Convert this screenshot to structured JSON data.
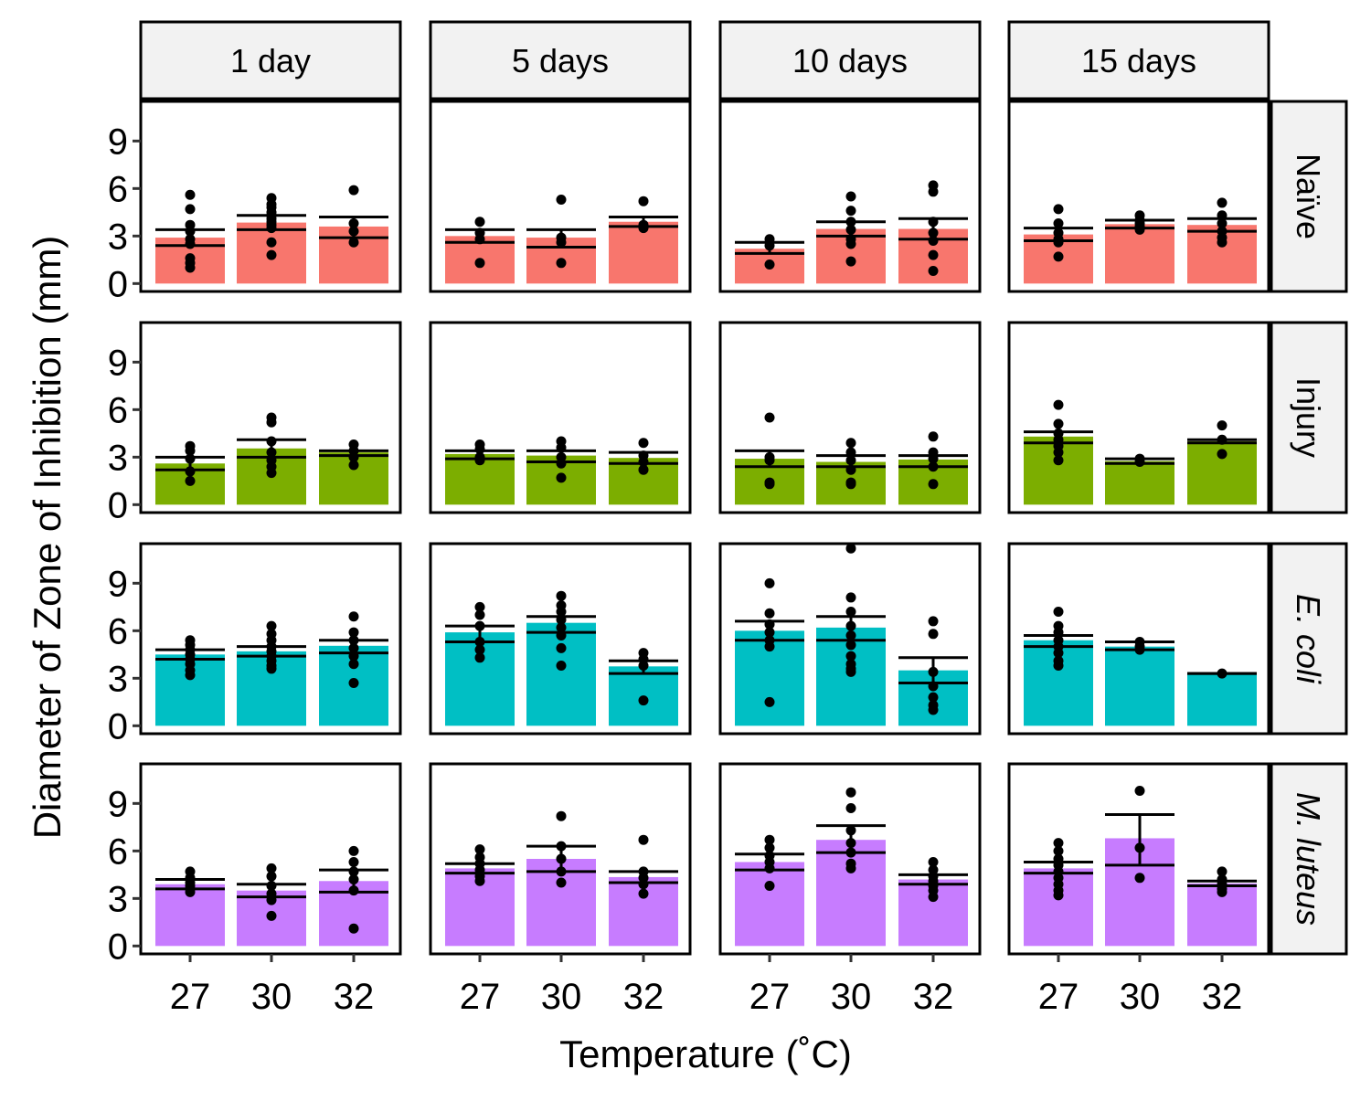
{
  "chart_data": {
    "type": "bar",
    "xlabel": "Temperature (˚C)",
    "ylabel": "Diameter of Zone of Inhibition (mm)",
    "columns": [
      "1 day",
      "5 days",
      "10 days",
      "15 days"
    ],
    "rows": [
      {
        "label": "Naïve",
        "italic": false,
        "color": "#F8766D"
      },
      {
        "label": "Injury",
        "italic": false,
        "color": "#7CAE00"
      },
      {
        "label": "E. coli",
        "italic": true,
        "color": "#00BFC4"
      },
      {
        "label": "M. luteus",
        "italic": true,
        "color": "#C77CFF"
      }
    ],
    "categories": [
      "27",
      "30",
      "32"
    ],
    "y_ticks": [
      "0",
      "3",
      "6",
      "9"
    ],
    "ylim": [
      -0.5,
      11.5
    ],
    "grid": false,
    "legend": "none",
    "point_color": "#000000",
    "panels": [
      [
        [
          {
            "mean": 2.9,
            "lo": 2.4,
            "hi": 3.4,
            "points": [
              5.6,
              4.7,
              3.7,
              3.3,
              2.8,
              2.5,
              1.6,
              1.3,
              1.0
            ]
          },
          {
            "mean": 3.85,
            "lo": 3.4,
            "hi": 4.3,
            "points": [
              5.4,
              5.0,
              4.8,
              4.5,
              4.3,
              4.1,
              3.9,
              3.7,
              3.5,
              2.6,
              1.8
            ]
          },
          {
            "mean": 3.6,
            "lo": 2.9,
            "hi": 4.2,
            "points": [
              5.9,
              3.8,
              3.3,
              2.6
            ]
          }
        ],
        [
          {
            "mean": 3.0,
            "lo": 2.6,
            "hi": 3.4,
            "points": [
              3.9,
              3.2,
              2.8,
              1.3
            ]
          },
          {
            "mean": 2.9,
            "lo": 2.3,
            "hi": 3.4,
            "points": [
              5.3,
              2.9,
              2.6,
              1.3
            ]
          },
          {
            "mean": 3.9,
            "lo": 3.6,
            "hi": 4.2,
            "points": [
              5.2,
              3.7,
              3.5
            ]
          }
        ],
        [
          {
            "mean": 2.2,
            "lo": 1.9,
            "hi": 2.6,
            "points": [
              2.8,
              2.4,
              1.2
            ]
          },
          {
            "mean": 3.45,
            "lo": 3.0,
            "hi": 3.9,
            "points": [
              5.5,
              4.6,
              3.9,
              3.4,
              2.8,
              2.5,
              1.4
            ]
          },
          {
            "mean": 3.45,
            "lo": 2.8,
            "hi": 4.1,
            "points": [
              6.2,
              5.8,
              3.9,
              3.2,
              2.7,
              1.8,
              0.8
            ]
          }
        ],
        [
          {
            "mean": 3.1,
            "lo": 2.7,
            "hi": 3.5,
            "points": [
              4.7,
              3.8,
              3.2,
              2.8,
              2.6,
              1.7
            ]
          },
          {
            "mean": 3.75,
            "lo": 3.5,
            "hi": 4.0,
            "points": [
              4.3,
              4.0,
              3.8,
              3.6,
              3.4
            ]
          },
          {
            "mean": 3.7,
            "lo": 3.3,
            "hi": 4.1,
            "points": [
              5.1,
              4.3,
              3.8,
              3.3,
              2.9,
              2.6
            ]
          }
        ]
      ],
      [
        [
          {
            "mean": 2.6,
            "lo": 2.2,
            "hi": 3.0,
            "points": [
              3.7,
              3.4,
              2.9,
              2.1,
              1.5
            ]
          },
          {
            "mean": 3.55,
            "lo": 3.0,
            "hi": 4.1,
            "points": [
              5.5,
              5.2,
              4.0,
              3.3,
              2.8,
              2.4,
              2.0
            ]
          },
          {
            "mean": 3.3,
            "lo": 3.1,
            "hi": 3.4,
            "points": [
              3.8,
              3.4,
              3.0,
              2.5
            ]
          }
        ],
        [
          {
            "mean": 3.2,
            "lo": 2.9,
            "hi": 3.4,
            "points": [
              3.8,
              3.5,
              3.0,
              2.8
            ]
          },
          {
            "mean": 3.1,
            "lo": 2.7,
            "hi": 3.4,
            "points": [
              4.0,
              3.6,
              3.0,
              2.6,
              1.7
            ]
          },
          {
            "mean": 2.95,
            "lo": 2.6,
            "hi": 3.3,
            "points": [
              3.9,
              3.1,
              2.7,
              2.2
            ]
          }
        ],
        [
          {
            "mean": 2.9,
            "lo": 2.4,
            "hi": 3.4,
            "points": [
              5.5,
              3.0,
              2.8,
              1.4,
              1.3
            ]
          },
          {
            "mean": 2.7,
            "lo": 2.4,
            "hi": 3.1,
            "points": [
              3.9,
              3.3,
              2.8,
              2.2,
              1.4,
              1.3
            ]
          },
          {
            "mean": 2.85,
            "lo": 2.4,
            "hi": 3.1,
            "points": [
              4.3,
              3.3,
              2.9,
              2.4,
              1.3
            ]
          }
        ],
        [
          {
            "mean": 4.3,
            "lo": 3.9,
            "hi": 4.6,
            "points": [
              6.3,
              5.1,
              4.5,
              4.1,
              3.7,
              3.3,
              2.8
            ]
          },
          {
            "mean": 2.75,
            "lo": 2.6,
            "hi": 2.9,
            "points": [
              2.9,
              2.7
            ]
          },
          {
            "mean": 4.0,
            "lo": 3.9,
            "hi": 4.1,
            "points": [
              5.0,
              4.1,
              3.2
            ]
          }
        ]
      ],
      [
        [
          {
            "mean": 4.5,
            "lo": 4.2,
            "hi": 4.8,
            "points": [
              5.4,
              5.1,
              4.8,
              4.5,
              4.2,
              3.9,
              3.5,
              3.2
            ]
          },
          {
            "mean": 4.7,
            "lo": 4.4,
            "hi": 5.0,
            "points": [
              6.3,
              5.8,
              5.4,
              5.0,
              4.7,
              4.4,
              4.1,
              3.8,
              3.6
            ]
          },
          {
            "mean": 5.05,
            "lo": 4.6,
            "hi": 5.4,
            "points": [
              6.9,
              5.9,
              5.4,
              4.9,
              4.4,
              3.9,
              2.7
            ]
          }
        ],
        [
          {
            "mean": 5.9,
            "lo": 5.3,
            "hi": 6.3,
            "points": [
              7.5,
              7.0,
              6.3,
              5.3,
              4.8,
              4.3
            ]
          },
          {
            "mean": 6.5,
            "lo": 5.9,
            "hi": 6.9,
            "points": [
              8.2,
              7.6,
              7.2,
              6.7,
              6.2,
              5.7,
              4.9,
              3.8
            ]
          },
          {
            "mean": 3.75,
            "lo": 3.3,
            "hi": 4.1,
            "points": [
              4.6,
              4.2,
              3.8,
              1.6
            ]
          }
        ],
        [
          {
            "mean": 6.0,
            "lo": 5.4,
            "hi": 6.6,
            "points": [
              9.0,
              7.1,
              6.4,
              5.9,
              5.4,
              5.0,
              1.5
            ]
          },
          {
            "mean": 6.2,
            "lo": 5.4,
            "hi": 6.9,
            "points": [
              11.2,
              8.1,
              7.2,
              6.3,
              5.7,
              5.1,
              4.4,
              3.9,
              3.6,
              3.4
            ]
          },
          {
            "mean": 3.5,
            "lo": 2.7,
            "hi": 4.3,
            "points": [
              6.6,
              5.8,
              3.4,
              2.5,
              1.8,
              1.3,
              1.0
            ]
          }
        ],
        [
          {
            "mean": 5.4,
            "lo": 5.0,
            "hi": 5.7,
            "points": [
              7.2,
              6.3,
              5.9,
              5.4,
              5.0,
              4.6,
              4.1,
              3.8
            ]
          },
          {
            "mean": 5.0,
            "lo": 4.8,
            "hi": 5.3,
            "points": [
              5.3,
              5.0,
              4.8
            ]
          },
          {
            "mean": 3.3,
            "lo": 3.3,
            "hi": 3.3,
            "points": [
              3.3
            ]
          }
        ]
      ],
      [
        [
          {
            "mean": 3.9,
            "lo": 3.6,
            "hi": 4.2,
            "points": [
              4.7,
              4.3,
              4.0,
              3.8,
              3.6,
              3.4
            ]
          },
          {
            "mean": 3.5,
            "lo": 3.1,
            "hi": 3.9,
            "points": [
              4.9,
              4.4,
              3.8,
              3.3,
              2.9,
              1.9
            ]
          },
          {
            "mean": 4.1,
            "lo": 3.4,
            "hi": 4.8,
            "points": [
              6.0,
              5.3,
              4.7,
              4.2,
              3.5,
              1.1
            ]
          }
        ],
        [
          {
            "mean": 4.9,
            "lo": 4.6,
            "hi": 5.2,
            "points": [
              6.1,
              5.6,
              5.2,
              4.8,
              4.4,
              4.1
            ]
          },
          {
            "mean": 5.5,
            "lo": 4.7,
            "hi": 6.3,
            "points": [
              8.2,
              6.3,
              5.5,
              4.7,
              4.0
            ]
          },
          {
            "mean": 4.35,
            "lo": 4.0,
            "hi": 4.7,
            "points": [
              6.7,
              4.7,
              4.3,
              3.9,
              3.3
            ]
          }
        ],
        [
          {
            "mean": 5.3,
            "lo": 4.8,
            "hi": 5.8,
            "points": [
              6.7,
              6.2,
              5.7,
              5.3,
              4.9,
              3.8
            ]
          },
          {
            "mean": 6.7,
            "lo": 5.9,
            "hi": 7.6,
            "points": [
              9.7,
              8.7,
              7.3,
              6.5,
              5.9,
              5.2,
              4.9
            ]
          },
          {
            "mean": 4.2,
            "lo": 3.9,
            "hi": 4.5,
            "points": [
              5.3,
              4.8,
              4.4,
              4.1,
              3.8,
              3.5,
              3.1
            ]
          }
        ],
        [
          {
            "mean": 4.9,
            "lo": 4.6,
            "hi": 5.3,
            "points": [
              6.5,
              6.0,
              5.5,
              5.1,
              4.7,
              4.3,
              3.9,
              3.5,
              3.2
            ]
          },
          {
            "mean": 6.8,
            "lo": 5.1,
            "hi": 8.3,
            "points": [
              9.8,
              6.2,
              4.3
            ]
          },
          {
            "mean": 3.95,
            "lo": 3.8,
            "hi": 4.1,
            "points": [
              4.7,
              4.2,
              3.9,
              3.6,
              3.4
            ]
          }
        ]
      ]
    ]
  }
}
